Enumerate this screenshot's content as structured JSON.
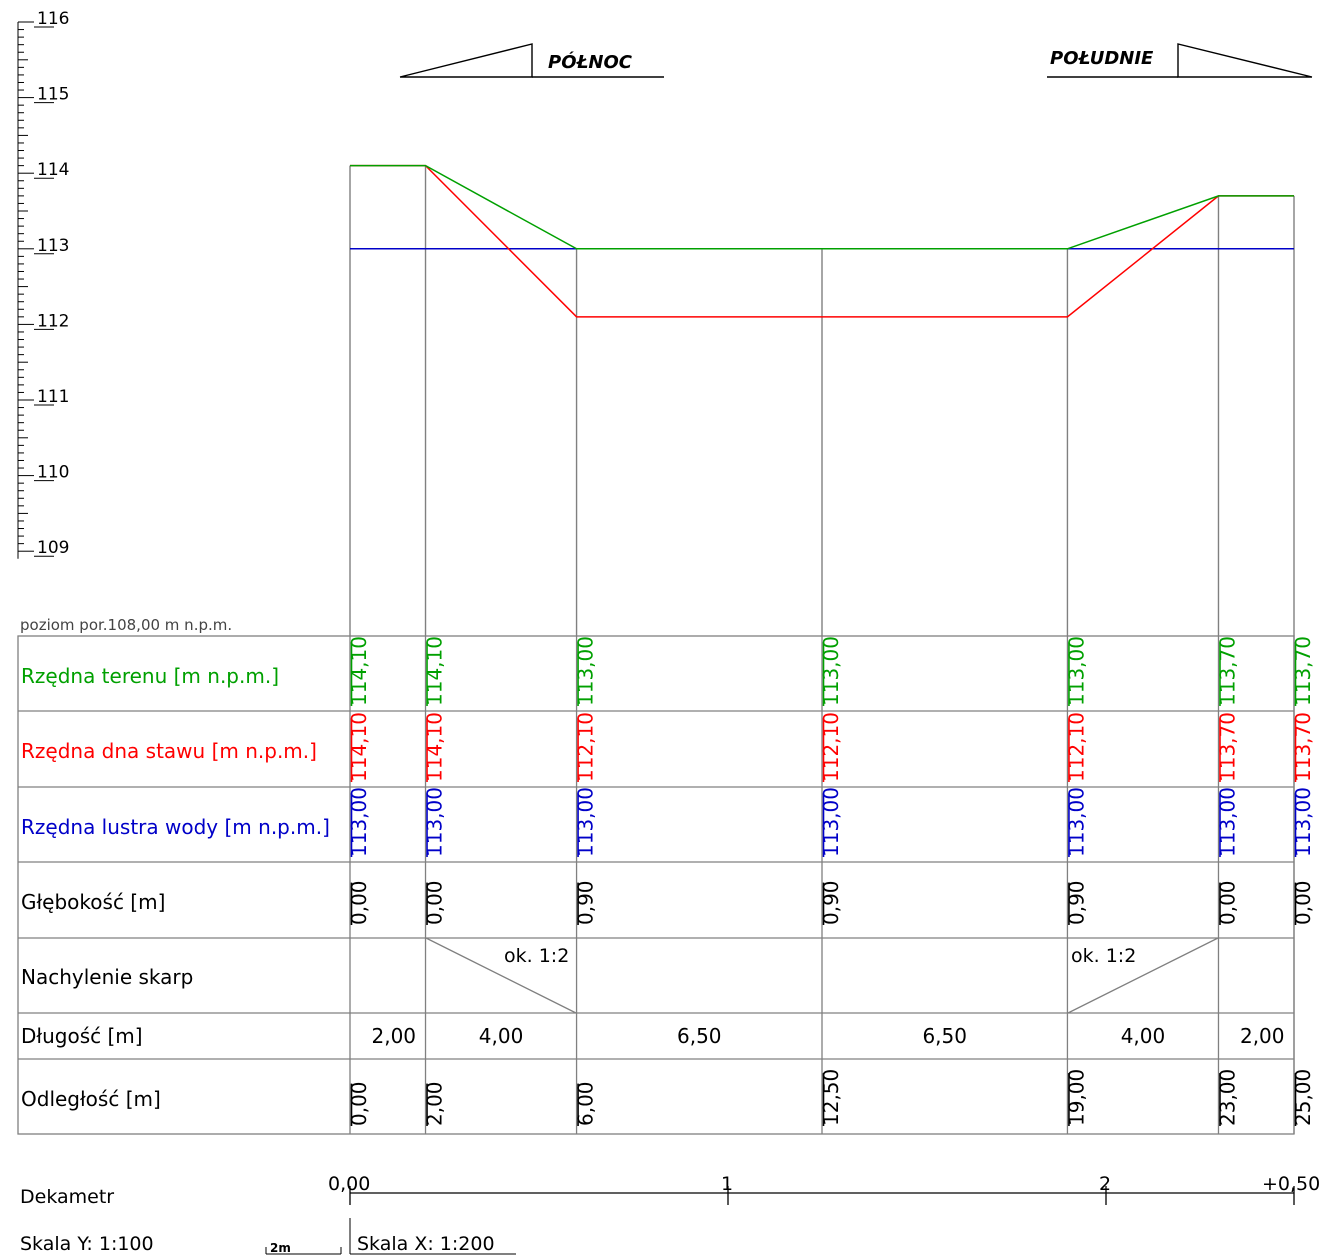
{
  "colors": {
    "terrain": "#00a000",
    "bottom": "#ff0000",
    "water": "#0000c8",
    "grid": "#808080",
    "text": "#000000"
  },
  "directions": {
    "north": "PÓŁNOC",
    "south": "POŁUDNIE"
  },
  "elevation_axis": {
    "labels": [
      "116",
      "115",
      "114",
      "113",
      "112",
      "111",
      "110",
      "109"
    ],
    "reference_level": "poziom por.108,00 m n.p.m."
  },
  "chart_data": {
    "type": "line",
    "x": [
      0,
      2,
      6,
      12.5,
      19,
      23,
      25
    ],
    "series": [
      {
        "key": "terrain",
        "values": [
          114.1,
          114.1,
          113.0,
          113.0,
          113.0,
          113.7,
          113.7
        ]
      },
      {
        "key": "bottom",
        "values": [
          114.1,
          114.1,
          112.1,
          112.1,
          112.1,
          113.7,
          113.7
        ]
      },
      {
        "key": "water",
        "values": [
          113.0,
          113.0,
          113.0,
          113.0,
          113.0,
          113.0,
          113.0
        ]
      }
    ],
    "ylim": [
      108,
      116
    ],
    "xlim": [
      0,
      25
    ]
  },
  "table": {
    "row_labels": {
      "terrain": "Rzędna terenu [m n.p.m.]",
      "bottom": "Rzędna dna stawu [m n.p.m.]",
      "water": "Rzędna lustra wody [m n.p.m.]",
      "depth": "Głębokość [m]",
      "slope": "Nachylenie skarp",
      "length": "Długość [m]",
      "distance": "Odległość [m]"
    },
    "terrain": [
      "114,10",
      "114,10",
      "113,00",
      "113,00",
      "113,00",
      "113,70",
      "113,70"
    ],
    "bottom": [
      "114,10",
      "114,10",
      "112,10",
      "112,10",
      "112,10",
      "113,70",
      "113,70"
    ],
    "water": [
      "113,00",
      "113,00",
      "113,00",
      "113,00",
      "113,00",
      "113,00",
      "113,00"
    ],
    "depth": [
      "0,00",
      "0,00",
      "0,90",
      "0,90",
      "0,90",
      "0,00",
      "0,00"
    ],
    "slope": [
      "ok. 1:2",
      "ok. 1:2"
    ],
    "length": [
      "2,00",
      "4,00",
      "6,50",
      "6,50",
      "4,00",
      "2,00"
    ],
    "distance": [
      "0,00",
      "2,00",
      "6,00",
      "12,50",
      "19,00",
      "23,00",
      "25,00"
    ]
  },
  "footer": {
    "dekametr_label": "Dekametr",
    "dekametr_ticks": [
      "0,00",
      "1",
      "2",
      "+0,50"
    ],
    "scale_y": "Skala Y: 1:100",
    "scale_x": "Skala X: 1:200",
    "scale_bar": "2m"
  }
}
